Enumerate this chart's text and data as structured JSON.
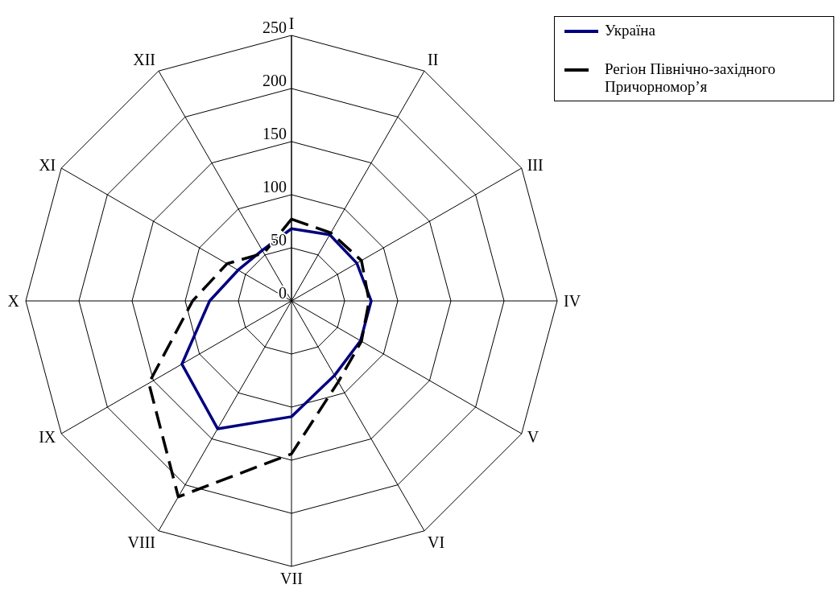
{
  "chart_data": {
    "type": "radar",
    "categories": [
      "I",
      "II",
      "III",
      "IV",
      "V",
      "VI",
      "VII",
      "VIII",
      "IX",
      "X",
      "XI",
      "XII"
    ],
    "series": [
      {
        "name": "Україна",
        "color": "#000080",
        "line_style": "solid",
        "values": [
          68,
          72,
          71,
          75,
          75,
          81,
          109,
          139,
          119,
          77,
          58,
          55
        ]
      },
      {
        "name": "Регіон Північно-західного Причорномор’я",
        "color": "#000000",
        "line_style": "dashed",
        "values": [
          77,
          74,
          76,
          73,
          76,
          88,
          144,
          213,
          155,
          93,
          70,
          52
        ]
      }
    ],
    "ylim": [
      0,
      250
    ],
    "yticks": [
      0,
      50,
      100,
      150,
      200,
      250
    ],
    "grid": true,
    "legend": "top right",
    "marker": "none"
  }
}
